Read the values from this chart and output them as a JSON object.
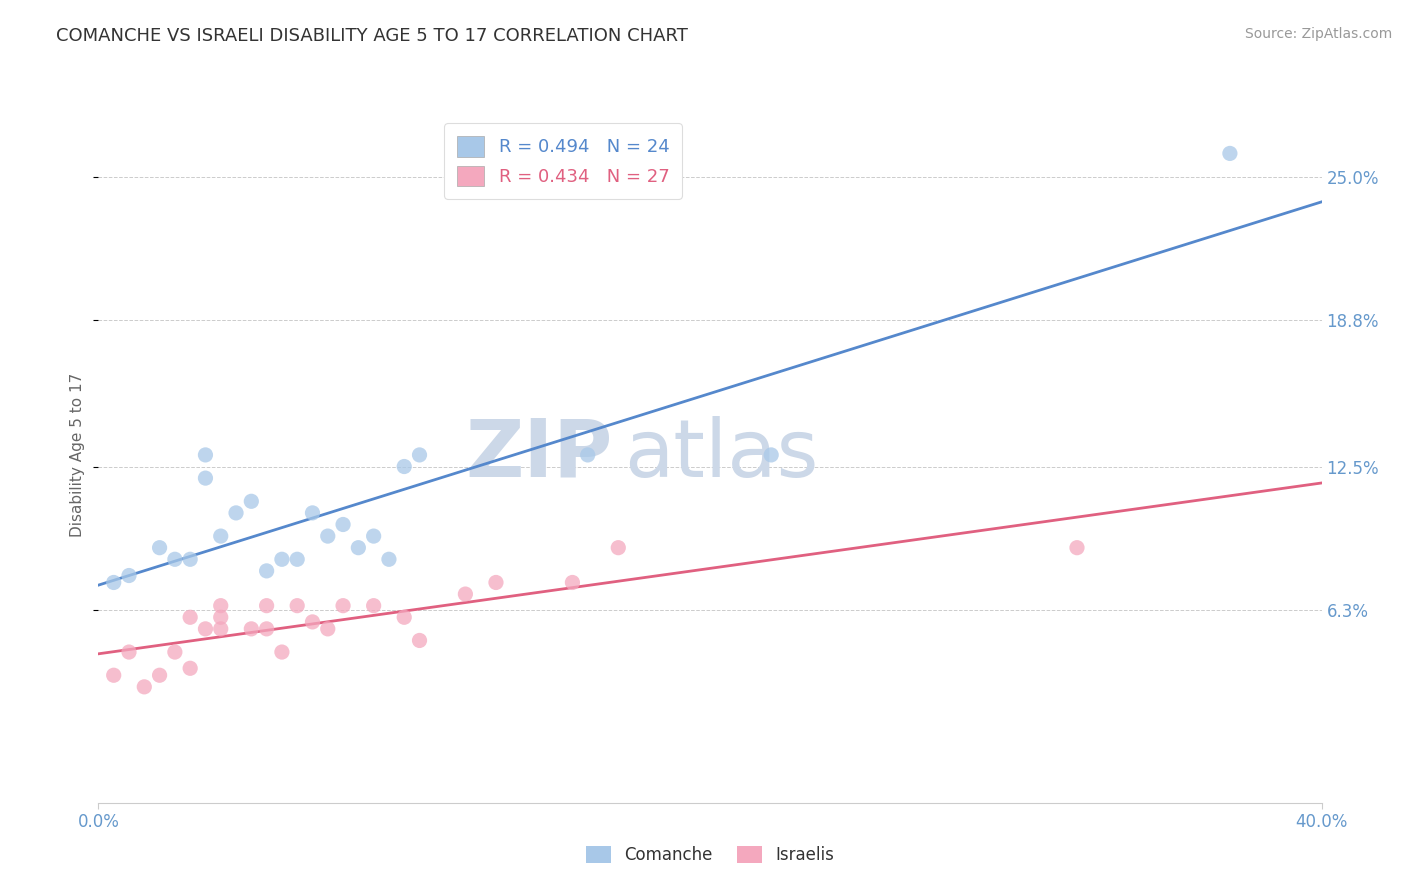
{
  "title": "COMANCHE VS ISRAELI DISABILITY AGE 5 TO 17 CORRELATION CHART",
  "source_text": "Source: ZipAtlas.com",
  "ylabel": "Disability Age 5 to 17",
  "xlim": [
    0.0,
    0.4
  ],
  "ylim": [
    -0.02,
    0.28
  ],
  "comanche_R": 0.494,
  "comanche_N": 24,
  "israeli_R": 0.434,
  "israeli_N": 27,
  "comanche_color": "#a8c8e8",
  "israeli_color": "#f4a8be",
  "comanche_line_color": "#5588cc",
  "israeli_line_color": "#e06080",
  "ytick_label_color": "#6699cc",
  "xtick_label_color": "#6699cc",
  "watermark_text": "ZIPatlas",
  "watermark_color": "#ccd8e8",
  "comanche_x": [
    0.005,
    0.01,
    0.02,
    0.025,
    0.03,
    0.035,
    0.035,
    0.04,
    0.045,
    0.05,
    0.055,
    0.06,
    0.065,
    0.07,
    0.075,
    0.08,
    0.085,
    0.09,
    0.095,
    0.1,
    0.105,
    0.16,
    0.22,
    0.37
  ],
  "comanche_y": [
    0.075,
    0.078,
    0.09,
    0.085,
    0.085,
    0.12,
    0.13,
    0.095,
    0.105,
    0.11,
    0.08,
    0.085,
    0.085,
    0.105,
    0.095,
    0.1,
    0.09,
    0.095,
    0.085,
    0.125,
    0.13,
    0.13,
    0.13,
    0.26
  ],
  "israeli_x": [
    0.005,
    0.01,
    0.015,
    0.02,
    0.025,
    0.03,
    0.03,
    0.035,
    0.04,
    0.04,
    0.04,
    0.05,
    0.055,
    0.055,
    0.06,
    0.065,
    0.07,
    0.075,
    0.08,
    0.09,
    0.1,
    0.105,
    0.12,
    0.13,
    0.155,
    0.17,
    0.32
  ],
  "israeli_y": [
    0.035,
    0.045,
    0.03,
    0.035,
    0.045,
    0.038,
    0.06,
    0.055,
    0.055,
    0.065,
    0.06,
    0.055,
    0.065,
    0.055,
    0.045,
    0.065,
    0.058,
    0.055,
    0.065,
    0.065,
    0.06,
    0.05,
    0.07,
    0.075,
    0.075,
    0.09,
    0.09
  ],
  "background_color": "#ffffff",
  "grid_color": "#cccccc",
  "ytick_vals": [
    0.063,
    0.125,
    0.188,
    0.25
  ],
  "ytick_labels": [
    "6.3%",
    "12.5%",
    "18.8%",
    "25.0%"
  ]
}
